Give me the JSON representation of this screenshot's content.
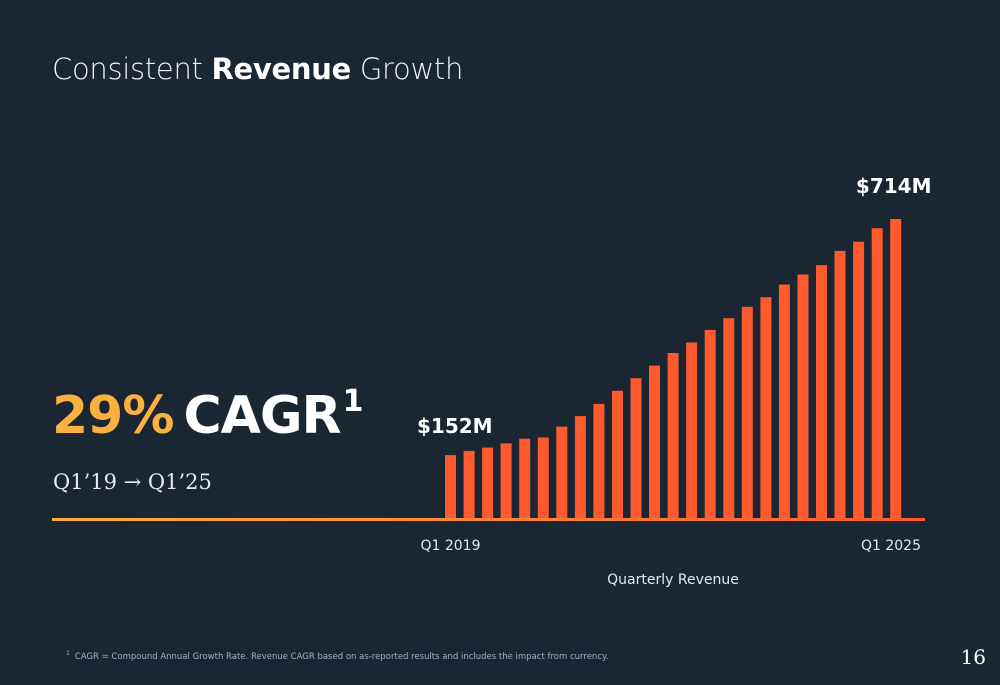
{
  "slide": {
    "title_pre": "Consistent ",
    "title_bold": "Revenue",
    "title_post": " Growth",
    "cagr_value": "29%",
    "cagr_label": "CAGR",
    "cagr_footnote_mark": "1",
    "period": "Q1’19 → Q1’25",
    "footnote_mark": "1",
    "footnote_text": "CAGR = Compound Annual Growth Rate. Revenue CAGR based on as-reported results and includes the impact from currency.",
    "page_number": "16"
  },
  "colors": {
    "background": "#1b2633",
    "bar": "#ff5a2e",
    "accent_yellow": "#fbb040"
  },
  "chart_data": {
    "type": "bar",
    "xlabel": "Quarterly Revenue",
    "ylabel": "",
    "categories": [
      "Q1 2019",
      "",
      "",
      "",
      "",
      "",
      "",
      "",
      "",
      "",
      "",
      "",
      "",
      "",
      "",
      "",
      "",
      "",
      "",
      "",
      "",
      "",
      "",
      "",
      "Q1 2025"
    ],
    "series": [
      {
        "values": [
          152,
          162,
          170,
          180,
          191,
          194,
          220,
          245,
          274,
          305,
          335,
          365,
          395,
          420,
          450,
          478,
          505,
          528,
          558,
          582,
          604,
          638,
          660,
          692,
          714
        ]
      }
    ],
    "labels": [
      {
        "index": 0,
        "text": "$152M"
      },
      {
        "index": 24,
        "text": "$714M"
      }
    ],
    "ylim": [
      0,
      714
    ],
    "grid": false,
    "legend": "none"
  }
}
